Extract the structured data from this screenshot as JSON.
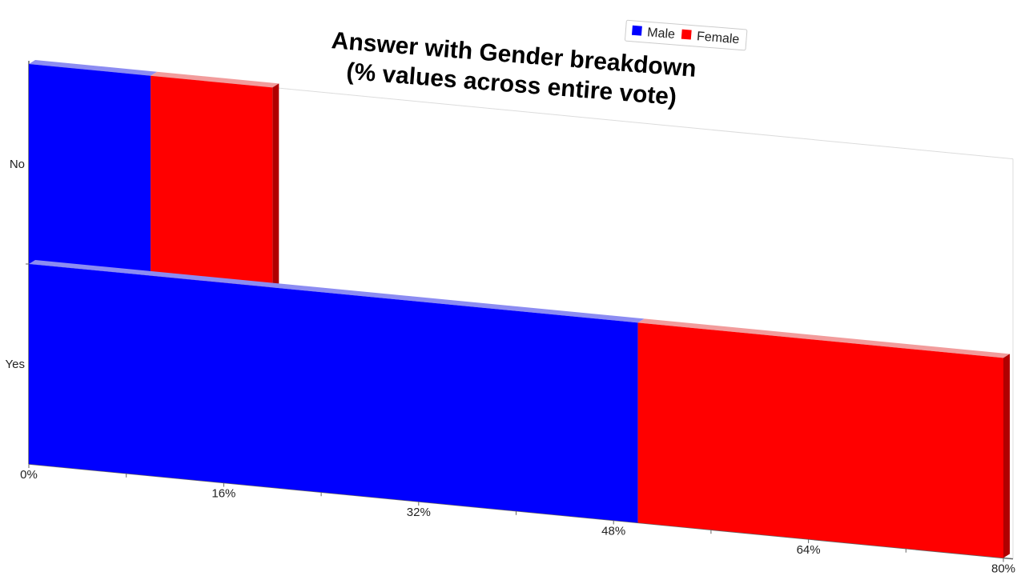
{
  "chart_data": {
    "type": "bar",
    "orientation": "horizontal",
    "stacked": true,
    "title": "Answer with Gender breakdown",
    "subtitle": "(% values across entire vote)",
    "categories": [
      "No",
      "Yes"
    ],
    "series": [
      {
        "name": "Male",
        "values": [
          10,
          50
        ],
        "color": "#0000ff"
      },
      {
        "name": "Female",
        "values": [
          10,
          30
        ],
        "color": "#ff0000"
      }
    ],
    "x_ticks": [
      "0%",
      "16%",
      "32%",
      "48%",
      "64%",
      "80%"
    ],
    "xlim": [
      0,
      80
    ],
    "grid": false,
    "legend_position": "top-right"
  }
}
